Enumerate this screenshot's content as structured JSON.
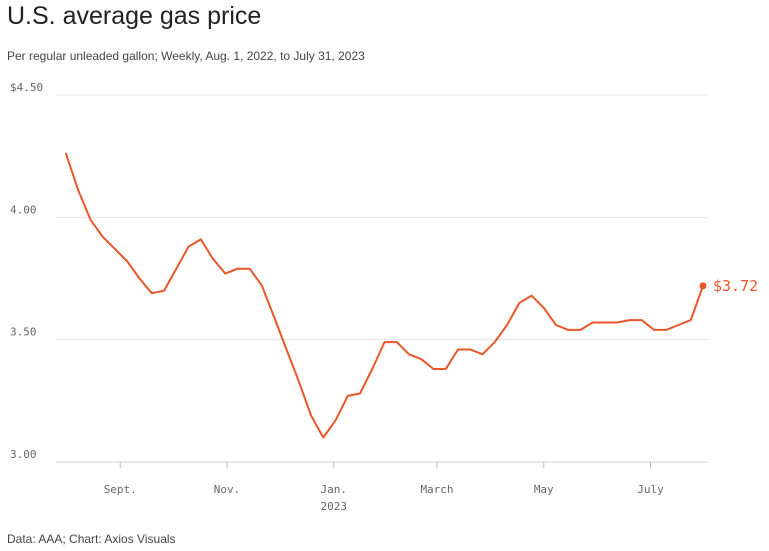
{
  "title": "U.S. average gas price",
  "subtitle": "Per regular unleaded gallon; Weekly, Aug. 1, 2022, to July 31, 2023",
  "footer": "Data: AAA; Chart: Axios Visuals",
  "colors": {
    "line": "#e8562a",
    "grid": "#e6e6e6",
    "text": "#666666"
  },
  "chart_data": {
    "type": "line",
    "title": "U.S. average gas price",
    "xlabel": "",
    "ylabel": "",
    "ylim": [
      3.0,
      4.5
    ],
    "grid": true,
    "x_range": [
      "2022-08-01",
      "2023-07-31"
    ],
    "y_ticks": [
      {
        "value": 4.5,
        "label": "$4.50"
      },
      {
        "value": 4.0,
        "label": "4.00"
      },
      {
        "value": 3.5,
        "label": "3.50"
      },
      {
        "value": 3.0,
        "label": "3.00"
      }
    ],
    "x_ticks": [
      {
        "date": "2022-09-01",
        "label": "Sept.",
        "sublabel": ""
      },
      {
        "date": "2022-11-01",
        "label": "Nov.",
        "sublabel": ""
      },
      {
        "date": "2023-01-01",
        "label": "Jan.",
        "sublabel": "2023"
      },
      {
        "date": "2023-03-01",
        "label": "March",
        "sublabel": ""
      },
      {
        "date": "2023-05-01",
        "label": "May",
        "sublabel": ""
      },
      {
        "date": "2023-07-01",
        "label": "July",
        "sublabel": ""
      }
    ],
    "series": [
      {
        "points": [
          [
            "2022-08-01",
            4.26
          ],
          [
            "2022-08-08",
            4.11
          ],
          [
            "2022-08-15",
            3.99
          ],
          [
            "2022-08-22",
            3.92
          ],
          [
            "2022-08-29",
            3.87
          ],
          [
            "2022-09-05",
            3.82
          ],
          [
            "2022-09-12",
            3.75
          ],
          [
            "2022-09-19",
            3.69
          ],
          [
            "2022-09-26",
            3.7
          ],
          [
            "2022-10-03",
            3.79
          ],
          [
            "2022-10-10",
            3.88
          ],
          [
            "2022-10-17",
            3.91
          ],
          [
            "2022-10-24",
            3.83
          ],
          [
            "2022-10-31",
            3.77
          ],
          [
            "2022-11-07",
            3.79
          ],
          [
            "2022-11-14",
            3.79
          ],
          [
            "2022-11-21",
            3.72
          ],
          [
            "2022-11-28",
            3.59
          ],
          [
            "2022-12-05",
            3.46
          ],
          [
            "2022-12-12",
            3.33
          ],
          [
            "2022-12-19",
            3.19
          ],
          [
            "2022-12-26",
            3.1
          ],
          [
            "2023-01-02",
            3.17
          ],
          [
            "2023-01-09",
            3.27
          ],
          [
            "2023-01-16",
            3.28
          ],
          [
            "2023-01-23",
            3.38
          ],
          [
            "2023-01-30",
            3.49
          ],
          [
            "2023-02-06",
            3.49
          ],
          [
            "2023-02-13",
            3.44
          ],
          [
            "2023-02-20",
            3.42
          ],
          [
            "2023-02-27",
            3.38
          ],
          [
            "2023-03-06",
            3.38
          ],
          [
            "2023-03-13",
            3.46
          ],
          [
            "2023-03-20",
            3.46
          ],
          [
            "2023-03-27",
            3.44
          ],
          [
            "2023-04-03",
            3.49
          ],
          [
            "2023-04-10",
            3.56
          ],
          [
            "2023-04-17",
            3.65
          ],
          [
            "2023-04-24",
            3.68
          ],
          [
            "2023-05-01",
            3.63
          ],
          [
            "2023-05-08",
            3.56
          ],
          [
            "2023-05-15",
            3.54
          ],
          [
            "2023-05-22",
            3.54
          ],
          [
            "2023-05-29",
            3.57
          ],
          [
            "2023-06-05",
            3.57
          ],
          [
            "2023-06-12",
            3.57
          ],
          [
            "2023-06-19",
            3.58
          ],
          [
            "2023-06-26",
            3.58
          ],
          [
            "2023-07-03",
            3.54
          ],
          [
            "2023-07-10",
            3.54
          ],
          [
            "2023-07-17",
            3.56
          ],
          [
            "2023-07-24",
            3.58
          ],
          [
            "2023-07-31",
            3.72
          ]
        ]
      }
    ],
    "end_label": "$3.72"
  }
}
